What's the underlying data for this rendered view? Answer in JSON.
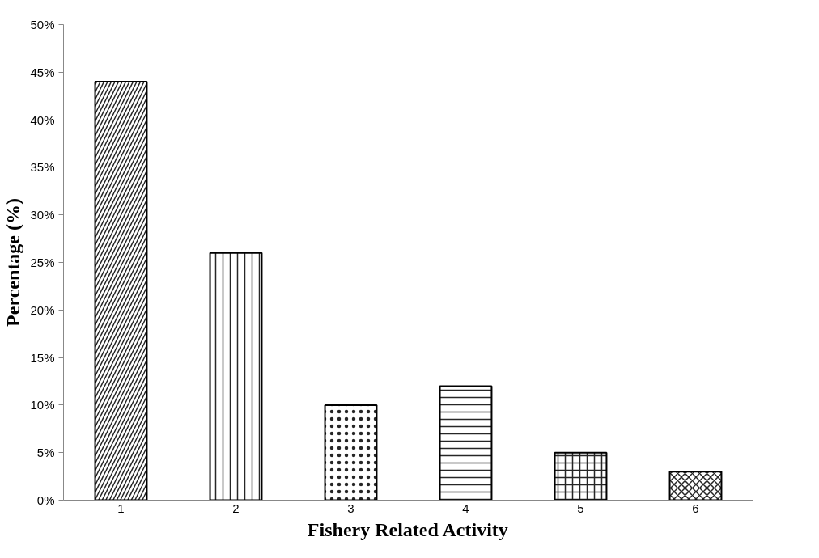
{
  "chart_data": {
    "type": "bar",
    "xlabel": "Fishery Related Activity",
    "ylabel": "Percentage (%)",
    "categories": [
      "1",
      "2",
      "3",
      "4",
      "5",
      "6"
    ],
    "values": [
      44,
      26,
      10,
      12,
      5,
      3
    ],
    "color": "#ffffff",
    "ylim": [
      0,
      50
    ],
    "yticks": [
      {
        "value": 0,
        "label": "0%"
      },
      {
        "value": 5,
        "label": "5%"
      },
      {
        "value": 10,
        "label": "10%"
      },
      {
        "value": 15,
        "label": "15%"
      },
      {
        "value": 20,
        "label": "20%"
      },
      {
        "value": 25,
        "label": "25%"
      },
      {
        "value": 30,
        "label": "30%"
      },
      {
        "value": 35,
        "label": "35%"
      },
      {
        "value": 40,
        "label": "40%"
      },
      {
        "value": 45,
        "label": "45%"
      },
      {
        "value": 50,
        "label": "50%"
      }
    ],
    "grid": false
  }
}
